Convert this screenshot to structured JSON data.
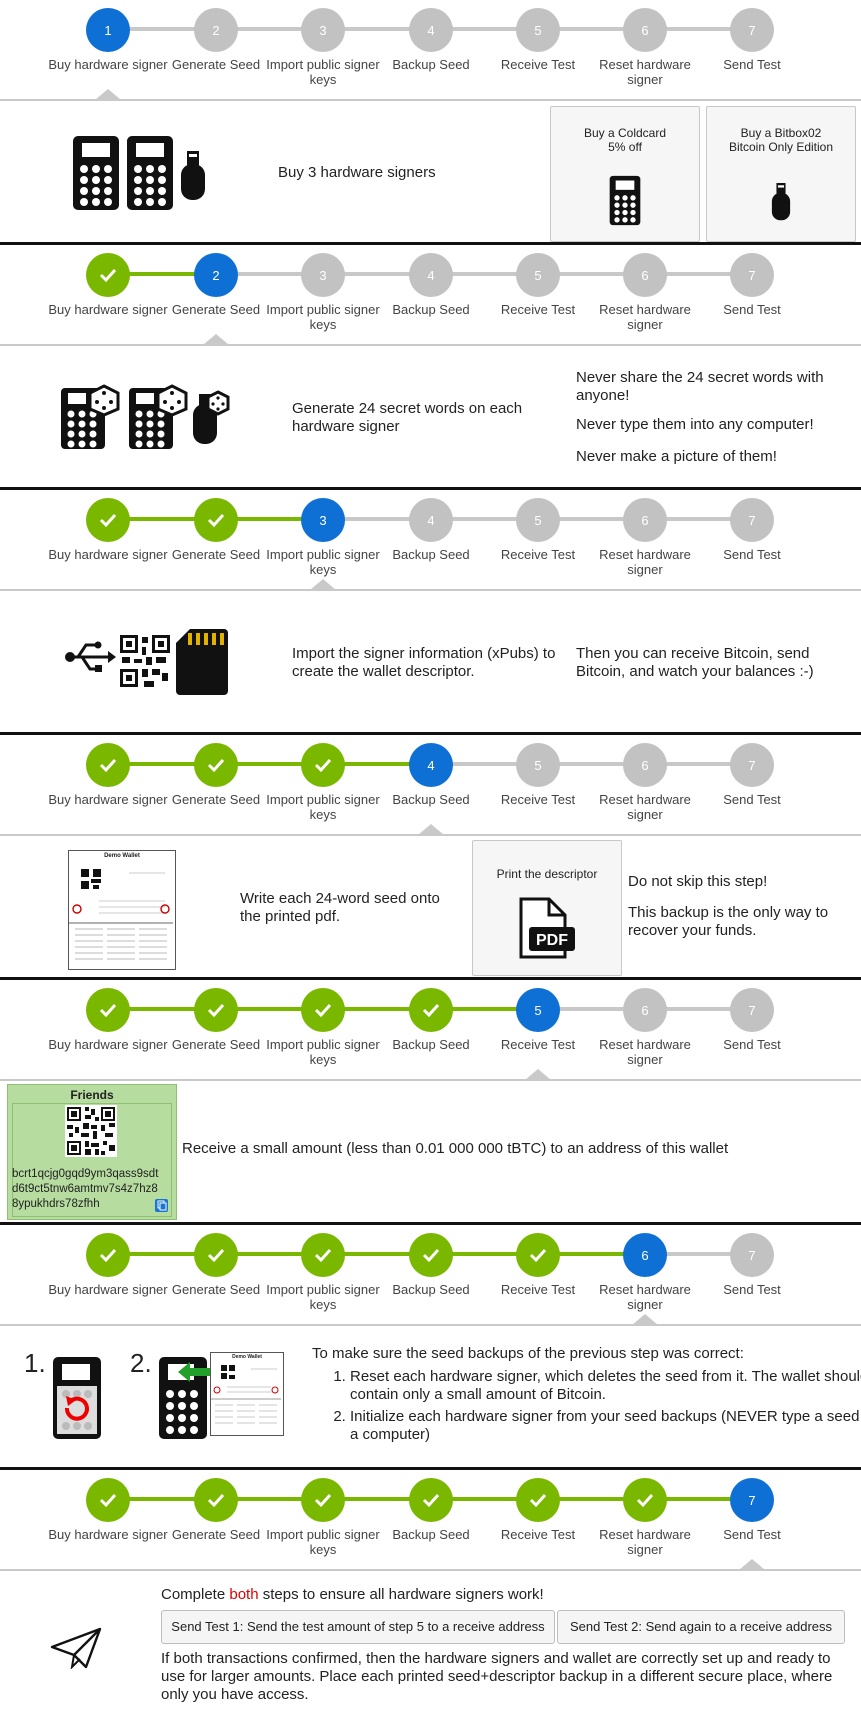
{
  "steps": [
    {
      "num": "1",
      "label": "Buy hardware signer"
    },
    {
      "num": "2",
      "label": "Generate Seed"
    },
    {
      "num": "3",
      "label": "Import public signer keys"
    },
    {
      "num": "4",
      "label": "Backup Seed"
    },
    {
      "num": "5",
      "label": "Receive Test"
    },
    {
      "num": "6",
      "label": "Reset hardware signer"
    },
    {
      "num": "7",
      "label": "Send Test"
    }
  ],
  "step1": {
    "title": "Buy 3 hardware signers",
    "coldcard_label": "Buy a Coldcard\n5% off",
    "bitbox_label": "Buy a Bitbox02\nBitcoin Only Edition"
  },
  "step2": {
    "title": "Generate 24 secret words on each hardware signer",
    "warnings": [
      "Never share the 24 secret words with anyone!",
      "Never type them into any computer!",
      "Never make a picture of them!"
    ]
  },
  "step3": {
    "title": "Import the signer information (xPubs) to create the wallet descriptor.",
    "note": "Then you can receive Bitcoin, send Bitcoin, and watch your balances :-)"
  },
  "step4": {
    "title": "Write each 24-word seed onto the printed pdf.",
    "print_label": "Print the descriptor",
    "pdf_text": "PDF",
    "warn1": "Do not skip this step!",
    "warn2": "This backup is the only way to recover your funds.",
    "doc_title": "Demo Wallet"
  },
  "step5": {
    "wallet_name": "Friends",
    "address": "bcrt1qcjg0gqd9ym3qass9sdtd6t9ct5tnw6amtmv7s4z7hz88ypukhdrs78zfhh",
    "text": "Receive a small amount (less than 0.01 000 000 tBTC) to an address of this wallet"
  },
  "step6": {
    "intro": "To make sure the seed backups of the previous step was correct:",
    "items": [
      "Reset each hardware signer, which deletes the seed from it. The wallet should contain only a small amount of Bitcoin.",
      "Initialize each hardware signer from your seed backups (NEVER type a seed into a computer)"
    ],
    "num1": "1.",
    "num2": "2.",
    "doc_title": "Demo Wallet"
  },
  "step7": {
    "heading_pre": "Complete ",
    "heading_em": "both",
    "heading_post": " steps to ensure all hardware signers work!",
    "btn1": "Send Test 1: Send the test amount of step 5 to a receive address",
    "btn2": "Send Test 2: Send again to a receive address",
    "footer": "If both transactions confirmed, then the hardware signers and wallet are correctly set up and ready to use for larger amounts. Place each printed seed+descriptor backup in a different secure place, where only you have access."
  },
  "colors": {
    "done": "#7ab800",
    "current": "#0e70d4",
    "pending": "#c2c2c2",
    "emphasis": "#e00000",
    "wallet_bg": "#b7dca0"
  }
}
